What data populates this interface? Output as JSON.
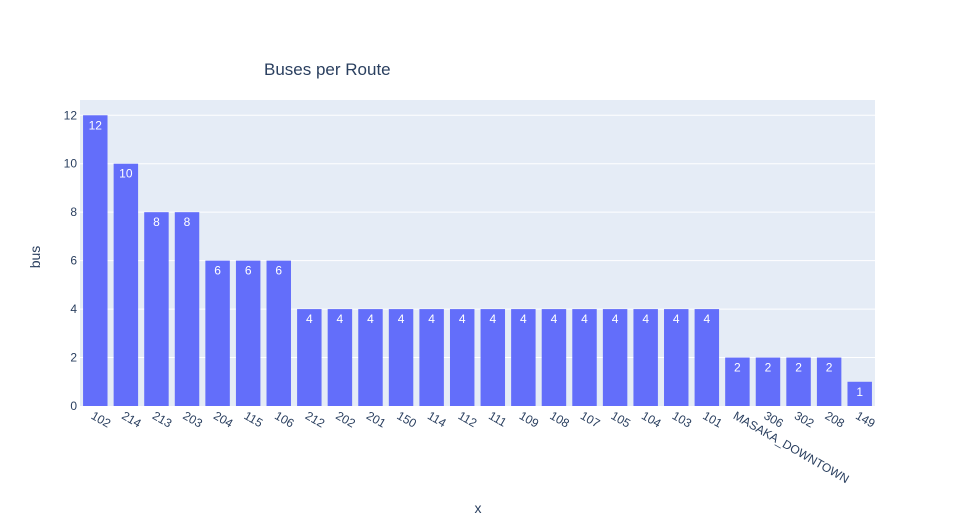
{
  "chart_data": {
    "type": "bar",
    "title": "Buses per Route",
    "xlabel": "x",
    "ylabel": "bus",
    "categories": [
      "102",
      "214",
      "213",
      "203",
      "204",
      "115",
      "106",
      "212",
      "202",
      "201",
      "150",
      "114",
      "112",
      "111",
      "109",
      "108",
      "107",
      "105",
      "104",
      "103",
      "101",
      "MASAKA_DOWNTOWN",
      "306",
      "302",
      "208",
      "149"
    ],
    "values": [
      12,
      10,
      8,
      8,
      6,
      6,
      6,
      4,
      4,
      4,
      4,
      4,
      4,
      4,
      4,
      4,
      4,
      4,
      4,
      4,
      4,
      2,
      2,
      2,
      2,
      1
    ],
    "ylim": [
      0,
      12.63
    ],
    "yticks": [
      0,
      2,
      4,
      6,
      8,
      10,
      12
    ],
    "grid": true,
    "legend": "none",
    "colors": {
      "bar": "#636efa",
      "plot_bg": "#e5ecf6",
      "grid": "#ffffff",
      "text": "#2a3f5f",
      "bar_text": "#ffffff"
    }
  }
}
